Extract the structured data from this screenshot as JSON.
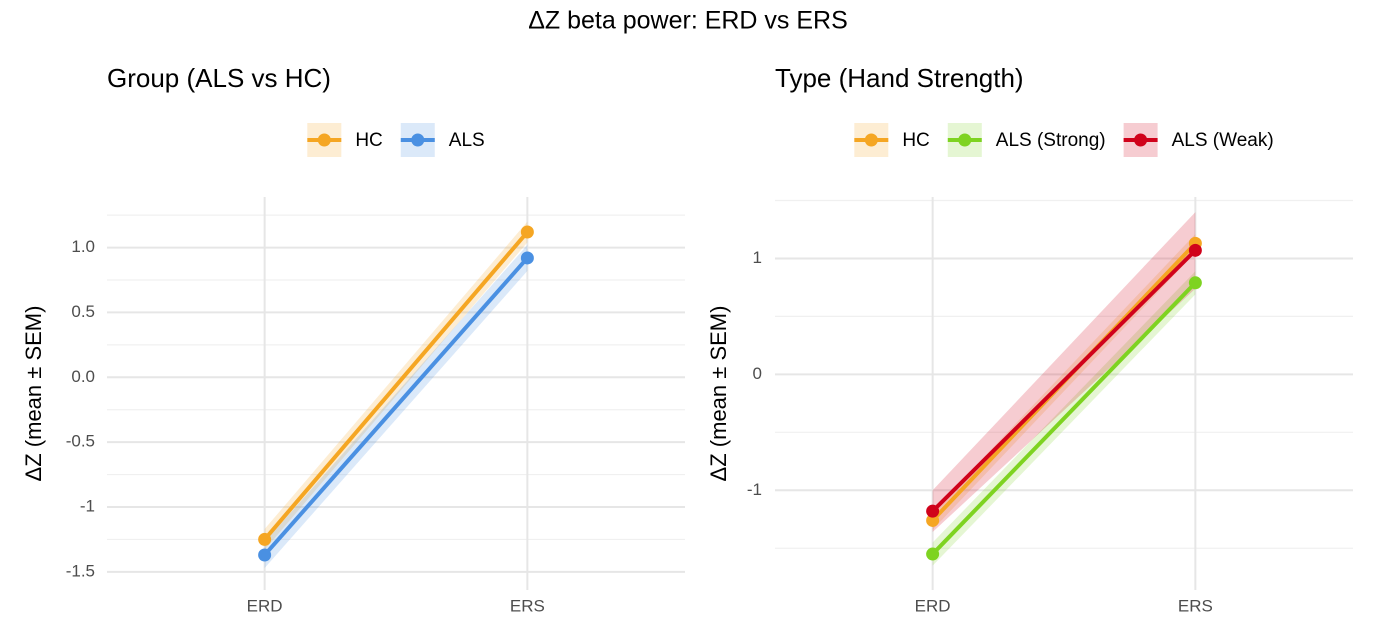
{
  "title": "ΔZ beta power: ERD vs ERS",
  "chart_data": [
    {
      "type": "line",
      "title": "Group (ALS vs HC)",
      "ylabel": "ΔZ (mean ± SEM)",
      "categories": [
        "ERD",
        "ERS"
      ],
      "series": [
        {
          "name": "HC",
          "color": "#f5a623",
          "values": [
            -1.25,
            1.12
          ],
          "errors": [
            0.08,
            0.08
          ]
        },
        {
          "name": "ALS",
          "color": "#4a90e2",
          "values": [
            -1.37,
            0.92
          ],
          "errors": [
            0.1,
            0.1
          ]
        }
      ],
      "ylim": [
        -1.64,
        1.39
      ],
      "yticks": [
        -1.5,
        -1,
        -0.5,
        {
          "value": 0,
          "label": "0.0"
        },
        0.5,
        {
          "value": 1,
          "label": "1.0"
        }
      ],
      "minor_yticks": [
        -1.25,
        -0.75,
        -0.25,
        0.25,
        0.75,
        1.25
      ],
      "grid": true,
      "legend": "top"
    },
    {
      "type": "line",
      "title": "Type (Hand Strength)",
      "ylabel": "ΔZ (mean ± SEM)",
      "categories": [
        "ERD",
        "ERS"
      ],
      "series": [
        {
          "name": "HC",
          "color": "#f5a623",
          "values": [
            -1.26,
            1.13
          ],
          "errors": [
            0.08,
            0.08
          ]
        },
        {
          "name": "ALS (Strong)",
          "color": "#7ed321",
          "values": [
            -1.55,
            0.79
          ],
          "errors": [
            0.1,
            0.1
          ]
        },
        {
          "name": "ALS (Weak)",
          "color": "#d0021b",
          "values": [
            -1.18,
            1.07
          ],
          "errors": [
            0.18,
            0.33
          ]
        }
      ],
      "ylim": [
        -1.86,
        1.53
      ],
      "yticks": [
        -1,
        0,
        1
      ],
      "minor_yticks": [
        -1.5,
        -0.5,
        0.5,
        1.5
      ],
      "grid": true,
      "legend": "top"
    }
  ]
}
